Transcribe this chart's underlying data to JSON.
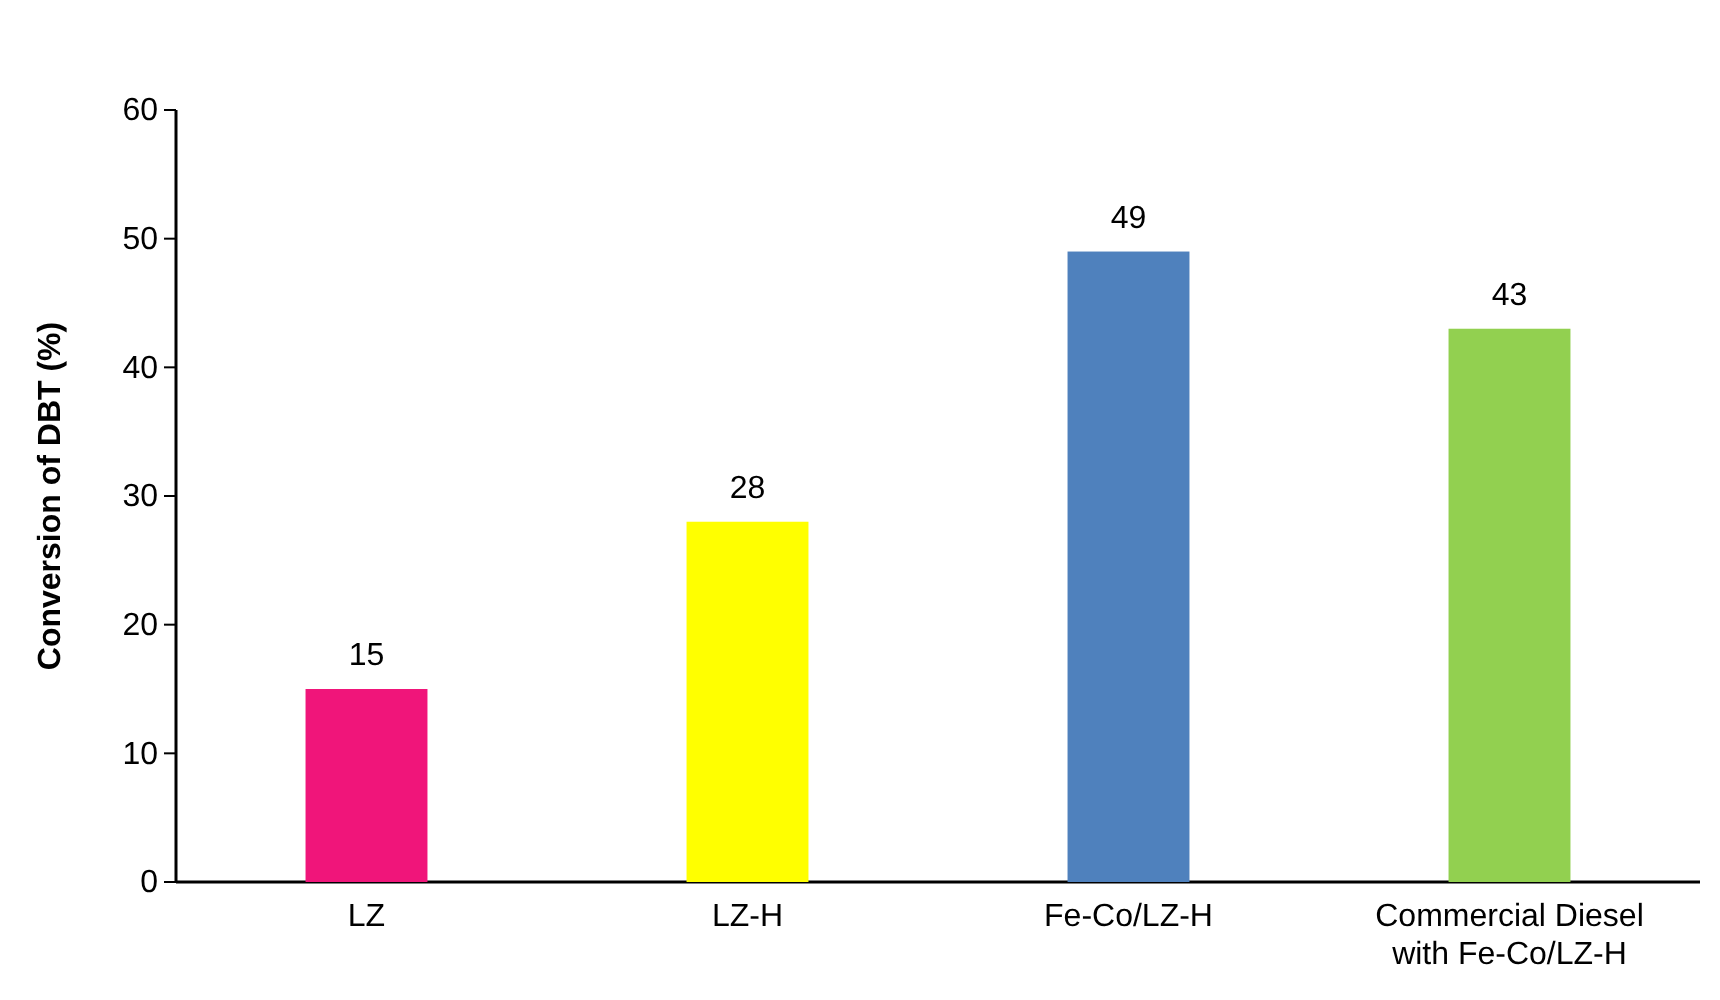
{
  "chart_data": {
    "type": "bar",
    "ylabel": "Conversion of DBT (%)",
    "categories": [
      "LZ",
      "LZ-H",
      "Fe-Co/LZ-H",
      "Commercial Diesel with Fe-Co/LZ-H"
    ],
    "values": [
      15,
      28,
      49,
      43
    ],
    "colors": [
      "#f0157a",
      "#ffff00",
      "#4f81bd",
      "#92d050"
    ],
    "ylim": [
      0,
      60
    ],
    "yticks": [
      0,
      10,
      20,
      30,
      40,
      50,
      60
    ],
    "grid": false,
    "data_labels": true
  }
}
